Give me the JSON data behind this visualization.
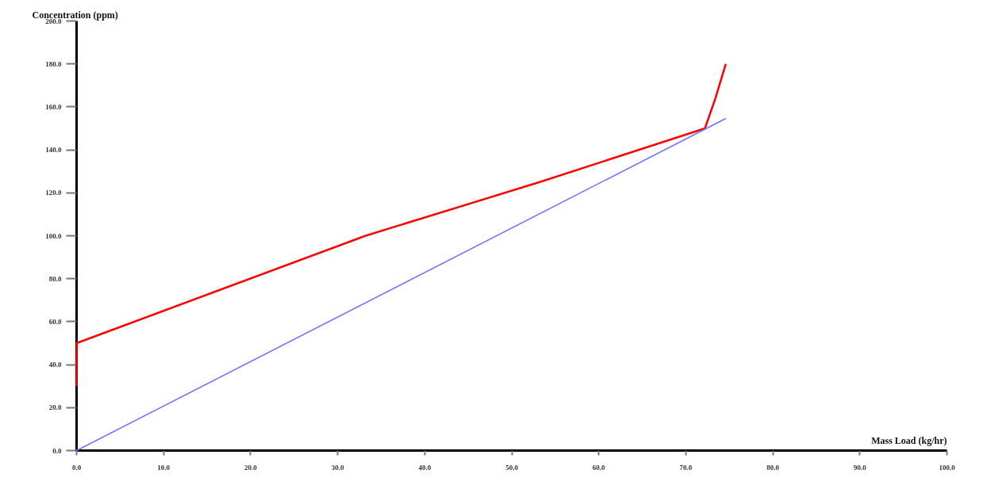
{
  "chart_data": {
    "type": "line",
    "xlabel": "Mass Load (kg/hr)",
    "ylabel": "Concentration (ppm)",
    "xlim": [
      0,
      100
    ],
    "ylim": [
      0,
      200
    ],
    "xticks": [
      {
        "value": 0,
        "label": "0.0"
      },
      {
        "value": 10,
        "label": "10.0"
      },
      {
        "value": 20,
        "label": "20.0"
      },
      {
        "value": 30,
        "label": "30.0"
      },
      {
        "value": 40,
        "label": "40.0"
      },
      {
        "value": 50,
        "label": "50.0"
      },
      {
        "value": 60,
        "label": "60.0"
      },
      {
        "value": 70,
        "label": "70.0"
      },
      {
        "value": 80,
        "label": "80.0"
      },
      {
        "value": 90,
        "label": "90.0"
      },
      {
        "value": 100,
        "label": "100.0"
      }
    ],
    "yticks": [
      {
        "value": 0,
        "label": "0.0"
      },
      {
        "value": 20,
        "label": "20.0"
      },
      {
        "value": 40,
        "label": "40.0"
      },
      {
        "value": 60,
        "label": "60.0"
      },
      {
        "value": 80,
        "label": "80.0"
      },
      {
        "value": 100,
        "label": "100.0"
      },
      {
        "value": 120,
        "label": "120.0"
      },
      {
        "value": 140,
        "label": "140.0"
      },
      {
        "value": 160,
        "label": "160.0"
      },
      {
        "value": 180,
        "label": "180.0"
      },
      {
        "value": 200,
        "label": "200.0"
      }
    ],
    "grid": false,
    "marker": "none",
    "line_style": "solid",
    "series": [
      {
        "color": "#ff0000",
        "x": [
          0,
          0,
          33.2,
          53.2,
          72.2,
          73.4,
          74.6
        ],
        "values": [
          30,
          50,
          100,
          125,
          150,
          164,
          180
        ]
      },
      {
        "color": "#7070ff",
        "x": [
          0,
          74.6
        ],
        "values": [
          0,
          154.6
        ]
      }
    ]
  }
}
